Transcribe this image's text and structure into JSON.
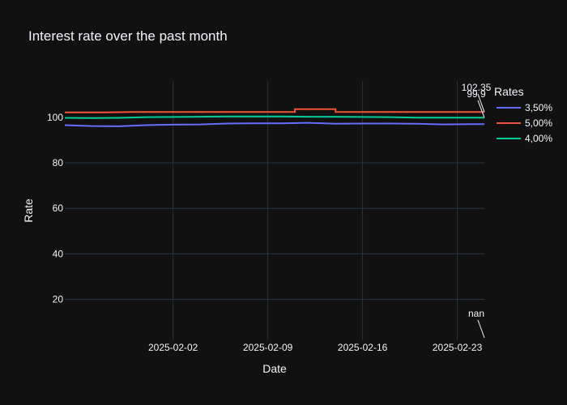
{
  "chart_data": {
    "type": "line",
    "title": "Interest rate over the past month",
    "xlabel": "Date",
    "ylabel": "Rate",
    "x_range": [
      "2025-01-25",
      "2025-02-25"
    ],
    "ylim": [
      2,
      116
    ],
    "x_ticks": [
      "2025-02-02",
      "2025-02-09",
      "2025-02-16",
      "2025-02-23"
    ],
    "y_ticks": [
      20,
      40,
      60,
      80,
      100
    ],
    "grid": true,
    "legend": {
      "title": "Rates",
      "placement": "top-right"
    },
    "series": [
      {
        "name": "3,50%",
        "color": "#636efa",
        "x": [
          "2025-01-25",
          "2025-01-27",
          "2025-01-29",
          "2025-01-31",
          "2025-02-02",
          "2025-02-04",
          "2025-02-06",
          "2025-02-08",
          "2025-02-10",
          "2025-02-12",
          "2025-02-14",
          "2025-02-16",
          "2025-02-18",
          "2025-02-20",
          "2025-02-22",
          "2025-02-24",
          "2025-02-25"
        ],
        "values": [
          96.6,
          96.2,
          96.1,
          96.6,
          96.8,
          96.9,
          97.3,
          97.4,
          97.4,
          97.6,
          97.2,
          97.3,
          97.3,
          97.2,
          96.9,
          97.0,
          97.0
        ]
      },
      {
        "name": "5,00%",
        "color": "#ef553b",
        "x": [
          "2025-01-25",
          "2025-01-28",
          "2025-01-30",
          "2025-02-02",
          "2025-02-05",
          "2025-02-08",
          "2025-02-11",
          "2025-02-11",
          "2025-02-14",
          "2025-02-14",
          "2025-02-17",
          "2025-02-20",
          "2025-02-23",
          "2025-02-25"
        ],
        "values": [
          102.2,
          102.2,
          102.4,
          102.4,
          102.4,
          102.4,
          102.4,
          103.6,
          103.6,
          102.4,
          102.4,
          102.4,
          102.4,
          102.35
        ]
      },
      {
        "name": "4,00%",
        "color": "#00cc96",
        "x": [
          "2025-01-25",
          "2025-01-27",
          "2025-01-29",
          "2025-01-31",
          "2025-02-02",
          "2025-02-04",
          "2025-02-06",
          "2025-02-08",
          "2025-02-10",
          "2025-02-12",
          "2025-02-14",
          "2025-02-16",
          "2025-02-18",
          "2025-02-20",
          "2025-02-22",
          "2025-02-25"
        ],
        "values": [
          99.8,
          99.7,
          99.8,
          100.1,
          100.2,
          100.3,
          100.4,
          100.4,
          100.4,
          100.3,
          100.3,
          100.2,
          100.1,
          99.9,
          99.9,
          99.9
        ]
      }
    ],
    "annotations": [
      {
        "text": "102.35",
        "x": "2025-02-25",
        "y": 102.35
      },
      {
        "text": "99.9",
        "x": "2025-02-25",
        "y": 99.9
      },
      {
        "text": "nan",
        "x": "2025-02-25",
        "y": 2
      }
    ]
  }
}
